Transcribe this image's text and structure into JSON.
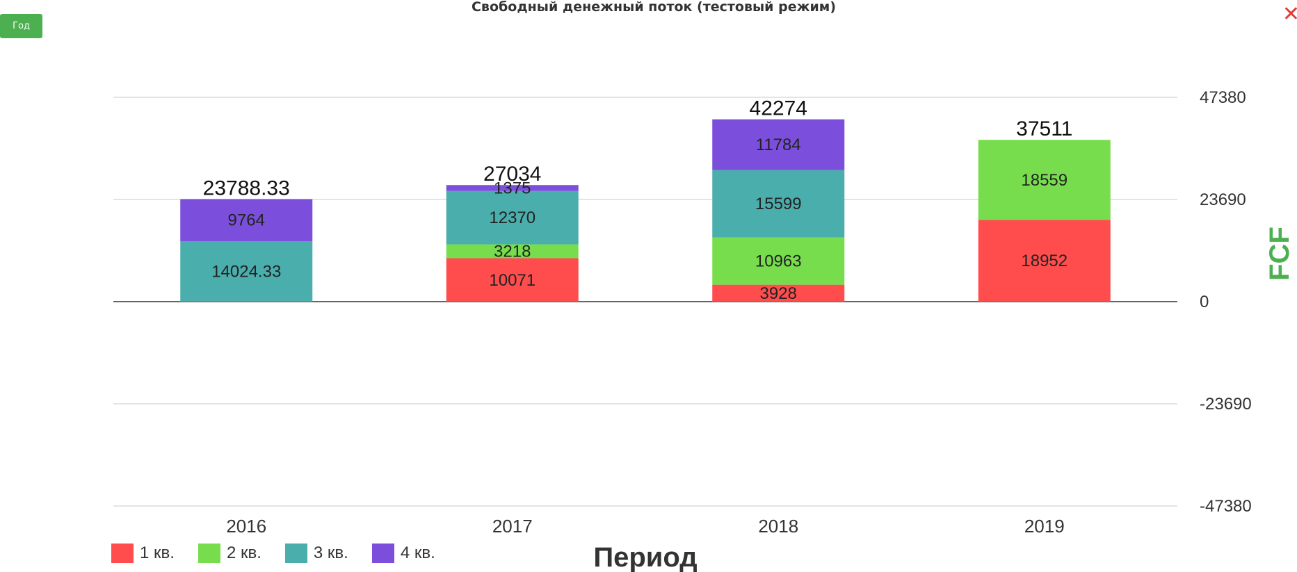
{
  "header": {
    "title": "Свободный денежный поток (тестовый режим)",
    "period_button": "Год"
  },
  "icons": {
    "close": "close-icon"
  },
  "chart_data": {
    "type": "bar",
    "stacked": true,
    "title": "Свободный денежный поток (тестовый режим)",
    "xlabel": "Период",
    "ylabel": "FCF",
    "categories": [
      "2016",
      "2017",
      "2018",
      "2019"
    ],
    "yticks": [
      "47380",
      "23690",
      "0",
      "-23690",
      "-47380"
    ],
    "ylim": [
      -47380,
      47380
    ],
    "grid": true,
    "legend_position": "bottom-left",
    "series": [
      {
        "name": "1 кв.",
        "color": "#ff4d4d",
        "values": [
          null,
          10071,
          3928,
          18952
        ],
        "labels": [
          "",
          "10071",
          "3928",
          "18952"
        ]
      },
      {
        "name": "2 кв.",
        "color": "#77dd4d",
        "values": [
          null,
          3218,
          10963,
          18559
        ],
        "labels": [
          "",
          "3218",
          "10963",
          "18559"
        ]
      },
      {
        "name": "3 кв.",
        "color": "#4aaeac",
        "values": [
          14024.33,
          12370,
          15599,
          null
        ],
        "labels": [
          "14024.33",
          "12370",
          "15599",
          ""
        ]
      },
      {
        "name": "4 кв.",
        "color": "#7b4fdc",
        "values": [
          9764,
          1375,
          11784,
          null
        ],
        "labels": [
          "9764",
          "1375",
          "11784",
          ""
        ]
      }
    ],
    "totals": [
      "23788.33",
      "27034",
      "42274",
      "37511"
    ]
  },
  "colors": {
    "button": "#4caf50",
    "ylabel": "#4caf50",
    "close": "#e53935"
  }
}
